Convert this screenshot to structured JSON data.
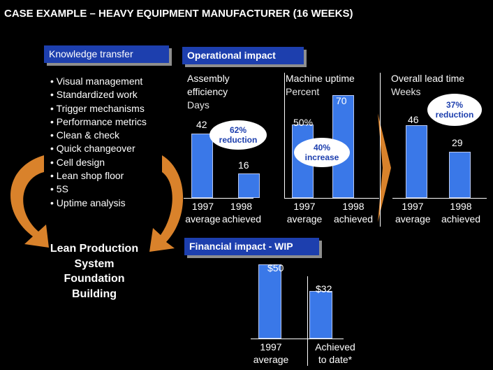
{
  "title": "CASE EXAMPLE  – HEAVY EQUIPMENT MANUFACTURER (16 WEEKS)",
  "left": {
    "tab": "Knowledge transfer",
    "bullets": [
      "Visual management",
      "Standardized work",
      "Trigger mechanisms",
      "Performance metrics",
      "Clean & check",
      "Quick changeover",
      "Cell design",
      "Lean shop floor",
      "5S",
      "Uptime analysis"
    ],
    "foundation": [
      "Lean Production",
      "System",
      "Foundation",
      "Building"
    ]
  },
  "ops_tab": "Operational impact",
  "fin_tab": "Financial impact - WIP",
  "colors": {
    "tab": "#1d3fae",
    "bar": "#3a78e8",
    "arrow": "#d9822b"
  },
  "chart_data": [
    {
      "type": "bar",
      "title_lines": [
        "Assembly",
        "efficiency"
      ],
      "unit": "Days",
      "categories": [
        [
          "1997",
          "average"
        ],
        [
          "1998",
          "achieved"
        ]
      ],
      "values": [
        42,
        16
      ],
      "value_labels": [
        "42",
        "16"
      ],
      "annotation": [
        "62%",
        "reduction"
      ]
    },
    {
      "type": "bar",
      "title_lines": [
        "Machine uptime"
      ],
      "unit": "Percent",
      "categories": [
        [
          "1997",
          "average"
        ],
        [
          "1998",
          "achieved"
        ]
      ],
      "values": [
        50,
        70
      ],
      "value_labels": [
        "50%",
        "70"
      ],
      "annotation": [
        "40%",
        "increase"
      ]
    },
    {
      "type": "bar",
      "title_lines": [
        "Overall lead time"
      ],
      "unit": "Weeks",
      "categories": [
        [
          "1997",
          "average"
        ],
        [
          "1998",
          "achieved"
        ]
      ],
      "values": [
        46,
        29
      ],
      "value_labels": [
        "46",
        "29"
      ],
      "annotation": [
        "37%",
        "reduction"
      ]
    },
    {
      "type": "bar",
      "title_lines": [],
      "unit": "",
      "categories": [
        [
          "1997",
          "average"
        ],
        [
          "Achieved",
          "to date*"
        ]
      ],
      "values": [
        50,
        32
      ],
      "value_labels": [
        "$50",
        "$32"
      ],
      "annotation": []
    }
  ]
}
